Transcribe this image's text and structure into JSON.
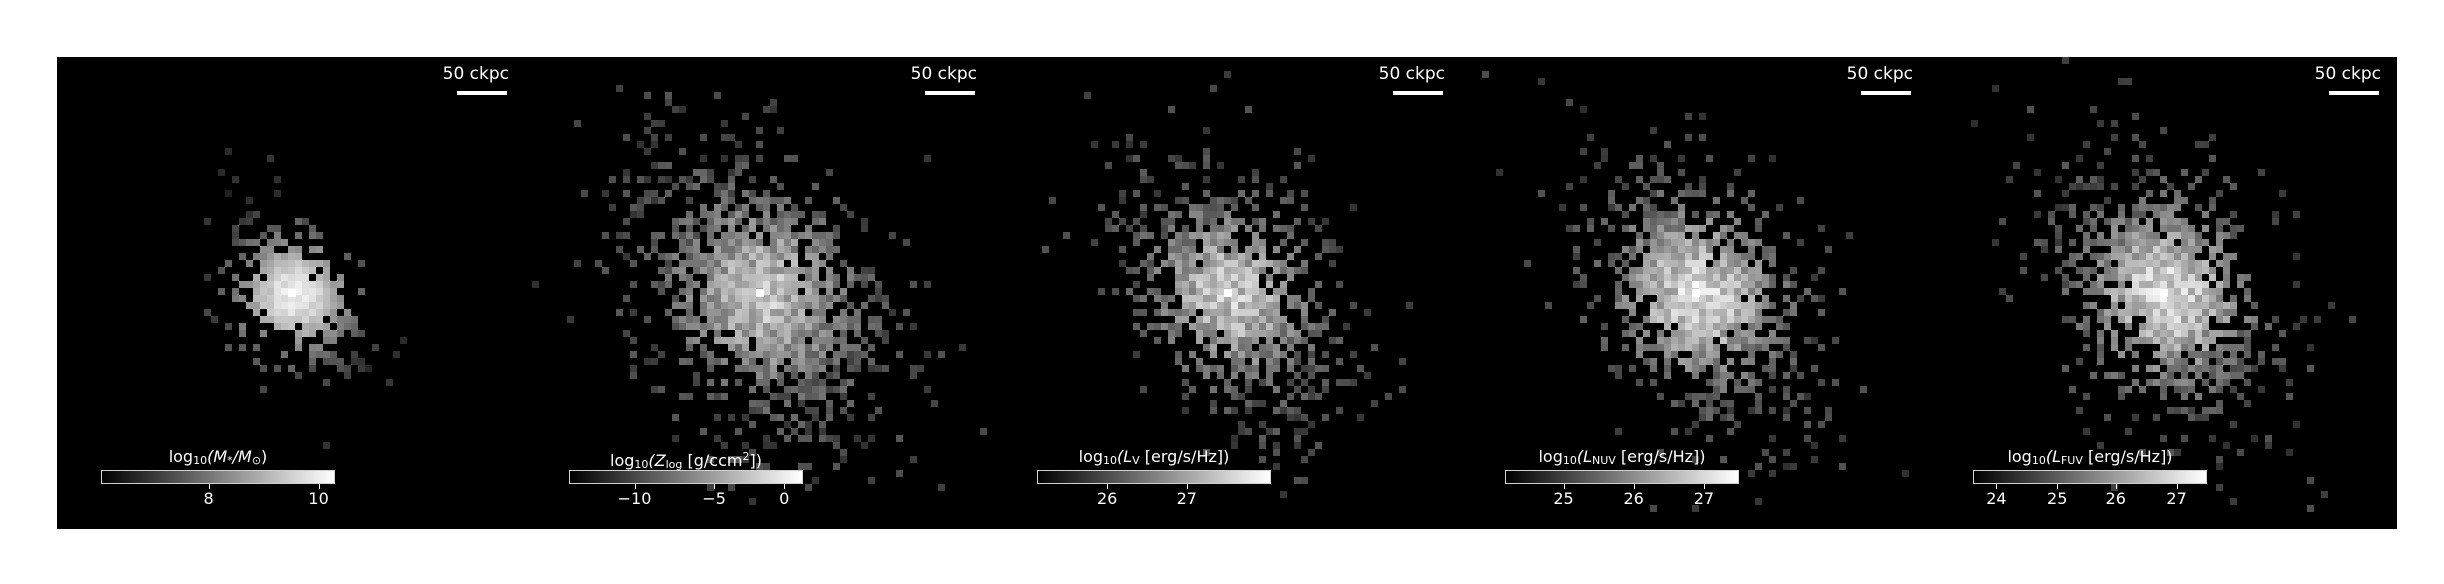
{
  "panels": [
    {
      "id": "stellar-mass",
      "scalebar_label": "50 ckpc",
      "colorbar": {
        "label_prefix": "log",
        "label_sub": "10",
        "label_body": "(M",
        "label_sub2": "*",
        "label_rest": "/M",
        "label_sub3": "⊙",
        "label_end": ")",
        "ticks": [
          "8",
          "10"
        ],
        "tick_fractions": [
          0.46,
          0.93
        ]
      },
      "intensity": 0.55,
      "spread": 0.55
    },
    {
      "id": "metallicity",
      "scalebar_label": "50 ckpc",
      "colorbar": {
        "label_prefix": "log",
        "label_sub": "10",
        "label_body": "(Z",
        "label_sub2": "log",
        "label_rest": " [g/ccm",
        "label_sup": "2",
        "label_end": "])",
        "ticks": [
          "−10",
          "−5",
          "0"
        ],
        "tick_fractions": [
          0.28,
          0.62,
          0.92
        ]
      },
      "intensity": 0.7,
      "spread": 1.0
    },
    {
      "id": "v-band",
      "scalebar_label": "50 ckpc",
      "colorbar": {
        "label_prefix": "log",
        "label_sub": "10",
        "label_body": "(L",
        "label_sub2": "V",
        "label_rest": " [erg/s/Hz])",
        "ticks": [
          "26",
          "27"
        ],
        "tick_fractions": [
          0.3,
          0.64
        ]
      },
      "intensity": 0.75,
      "spread": 0.85
    },
    {
      "id": "nuv",
      "scalebar_label": "50 ckpc",
      "colorbar": {
        "label_prefix": "log",
        "label_sub": "10",
        "label_body": "(L",
        "label_sub2": "NUV",
        "label_rest": " [erg/s/Hz])",
        "ticks": [
          "25",
          "26",
          "27"
        ],
        "tick_fractions": [
          0.25,
          0.55,
          0.85
        ]
      },
      "intensity": 0.85,
      "spread": 0.9
    },
    {
      "id": "fuv",
      "scalebar_label": "50 ckpc",
      "colorbar": {
        "label_prefix": "log",
        "label_sub": "10",
        "label_body": "(L",
        "label_sub2": "FUV",
        "label_rest": " [erg/s/Hz])",
        "ticks": [
          "24",
          "25",
          "26",
          "27"
        ],
        "tick_fractions": [
          0.1,
          0.36,
          0.61,
          0.87
        ]
      },
      "intensity": 0.85,
      "spread": 0.9
    }
  ],
  "colors": {
    "background": "#000000",
    "foreground": "#ffffff"
  }
}
